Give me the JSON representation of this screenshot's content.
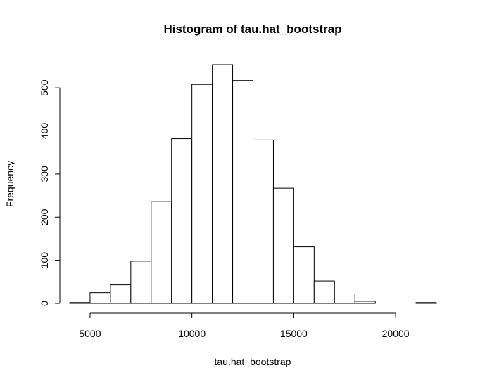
{
  "chart_data": {
    "type": "bar",
    "title": "Histogram of tau.hat_bootstrap",
    "xlabel": "tau.hat_bootstrap",
    "ylabel": "Frequency",
    "bins": [
      {
        "start": 4000,
        "end": 5000,
        "count": 2
      },
      {
        "start": 5000,
        "end": 6000,
        "count": 25
      },
      {
        "start": 6000,
        "end": 7000,
        "count": 43
      },
      {
        "start": 7000,
        "end": 8000,
        "count": 98
      },
      {
        "start": 8000,
        "end": 9000,
        "count": 236
      },
      {
        "start": 9000,
        "end": 10000,
        "count": 382
      },
      {
        "start": 10000,
        "end": 11000,
        "count": 508
      },
      {
        "start": 11000,
        "end": 12000,
        "count": 554
      },
      {
        "start": 12000,
        "end": 13000,
        "count": 517
      },
      {
        "start": 13000,
        "end": 14000,
        "count": 379
      },
      {
        "start": 14000,
        "end": 15000,
        "count": 267
      },
      {
        "start": 15000,
        "end": 16000,
        "count": 131
      },
      {
        "start": 16000,
        "end": 17000,
        "count": 52
      },
      {
        "start": 17000,
        "end": 18000,
        "count": 22
      },
      {
        "start": 18000,
        "end": 19000,
        "count": 5
      },
      {
        "start": 19000,
        "end": 20000,
        "count": 0
      },
      {
        "start": 20000,
        "end": 21000,
        "count": 0
      },
      {
        "start": 21000,
        "end": 22000,
        "count": 2
      }
    ],
    "xlim": [
      4000,
      22000
    ],
    "ylim": [
      0,
      554
    ],
    "xticks": [
      5000,
      10000,
      15000,
      20000
    ],
    "xtick_labels": [
      "5000",
      "10000",
      "15000",
      "20000"
    ],
    "yticks": [
      0,
      100,
      200,
      300,
      400,
      500
    ],
    "ytick_labels": [
      "0",
      "100",
      "200",
      "300",
      "400",
      "500"
    ],
    "grid": false,
    "legend": "none",
    "bar_fill": "#ffffff",
    "bar_stroke": "#000000"
  }
}
